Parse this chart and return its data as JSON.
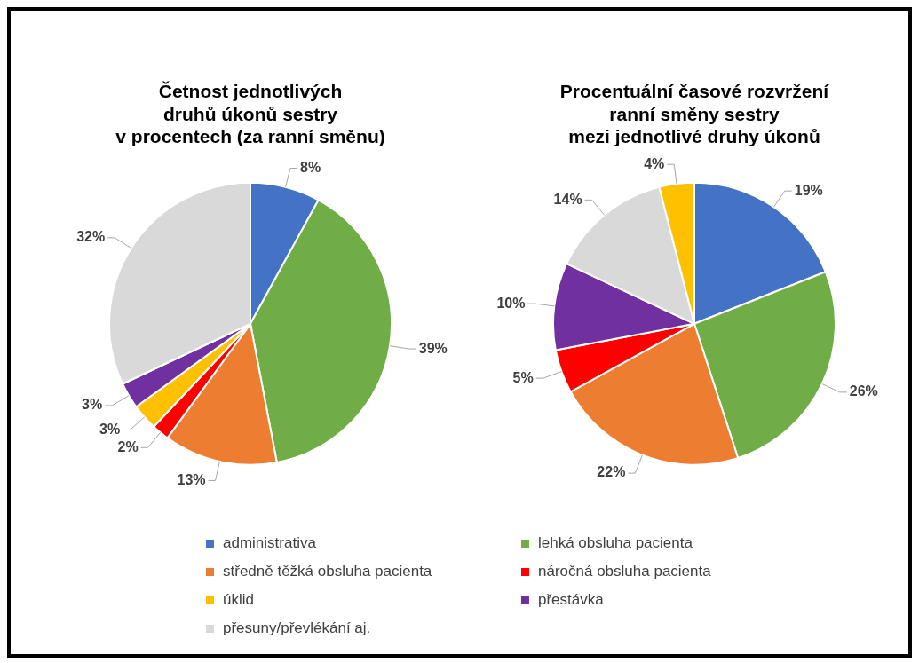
{
  "chart_data": [
    {
      "type": "pie",
      "title": "Četnost jednotlivých\ndruhů úkonů sestry\nv procentech (za ranní směnu)",
      "categories": [
        "administrativa",
        "lehká obsluha pacienta",
        "středně těžká obsluha pacienta",
        "náročná obsluha pacienta",
        "úklid",
        "přestávka",
        "přesuny/převlékání aj."
      ],
      "values": [
        8,
        39,
        13,
        2,
        3,
        3,
        32
      ],
      "colors": [
        "#4472c4",
        "#70ad47",
        "#ed7d31",
        "#ff0000",
        "#ffc000",
        "#7030a0",
        "#d9d9d9"
      ],
      "value_labels": [
        "8%",
        "39%",
        "13%",
        "2%",
        "3%",
        "3%",
        "32%"
      ],
      "legend": "bottom"
    },
    {
      "type": "pie",
      "title": "Procentuální časové rozvržení\nranní směny sestry\nmezi jednotlivé druhy úkonů",
      "categories": [
        null,
        null,
        null,
        null,
        null,
        null,
        null
      ],
      "values": [
        19,
        26,
        22,
        5,
        10,
        14,
        4
      ],
      "colors": [
        "#4472c4",
        "#70ad47",
        "#ed7d31",
        "#ff0000",
        "#7030a0",
        "#d9d9d9",
        "#ffc000"
      ],
      "value_labels": [
        "19%",
        "26%",
        "22%",
        "5%",
        "10%",
        "14%",
        "4%"
      ]
    }
  ]
}
